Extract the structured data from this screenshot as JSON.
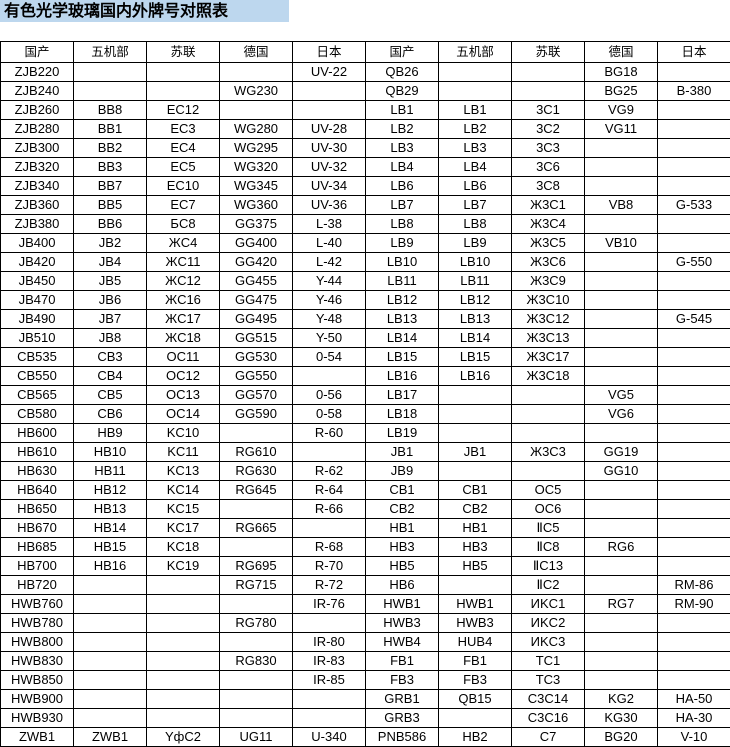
{
  "title": "有色光学玻璃国内外牌号对照表",
  "headers": [
    "国产",
    "五机部",
    "苏联",
    "德国",
    "日本",
    "国产",
    "五机部",
    "苏联",
    "德国",
    "日本"
  ],
  "rows": [
    [
      "ZJB220",
      "",
      "",
      "",
      "UV-22",
      "QB26",
      "",
      "",
      "BG18",
      ""
    ],
    [
      "ZJB240",
      "",
      "",
      "WG230",
      "",
      "QB29",
      "",
      "",
      "BG25",
      "B-380"
    ],
    [
      "ZJB260",
      "BB8",
      "EC12",
      "",
      "",
      "LB1",
      "LB1",
      "3C1",
      "VG9",
      ""
    ],
    [
      "ZJB280",
      "BB1",
      "EC3",
      "WG280",
      "UV-28",
      "LB2",
      "LB2",
      "3C2",
      "VG11",
      ""
    ],
    [
      "ZJB300",
      "BB2",
      "EC4",
      "WG295",
      "UV-30",
      "LB3",
      "LB3",
      "3C3",
      "",
      ""
    ],
    [
      "ZJB320",
      "BB3",
      "EC5",
      "WG320",
      "UV-32",
      "LB4",
      "LB4",
      "3C6",
      "",
      ""
    ],
    [
      "ZJB340",
      "BB7",
      "EC10",
      "WG345",
      "UV-34",
      "LB6",
      "LB6",
      "3C8",
      "",
      ""
    ],
    [
      "ZJB360",
      "BB5",
      "EC7",
      "WG360",
      "UV-36",
      "LB7",
      "LB7",
      "Ж3C1",
      "VB8",
      "G-533"
    ],
    [
      "ZJB380",
      "BB6",
      "БC8",
      "GG375",
      "L-38",
      "LB8",
      "LB8",
      "Ж3C4",
      "",
      ""
    ],
    [
      "JB400",
      "JB2",
      "ЖC4",
      "GG400",
      "L-40",
      "LB9",
      "LB9",
      "Ж3C5",
      "VB10",
      ""
    ],
    [
      "JB420",
      "JB4",
      "ЖC11",
      "GG420",
      "L-42",
      "LB10",
      "LB10",
      "Ж3C6",
      "",
      "G-550"
    ],
    [
      "JB450",
      "JB5",
      "ЖC12",
      "GG455",
      "Y-44",
      "LB11",
      "LB11",
      "Ж3C9",
      "",
      ""
    ],
    [
      "JB470",
      "JB6",
      "ЖC16",
      "GG475",
      "Y-46",
      "LB12",
      "LB12",
      "Ж3C10",
      "",
      ""
    ],
    [
      "JB490",
      "JB7",
      "ЖC17",
      "GG495",
      "Y-48",
      "LB13",
      "LB13",
      "Ж3C12",
      "",
      "G-545"
    ],
    [
      "JB510",
      "JB8",
      "ЖC18",
      "GG515",
      "Y-50",
      "LB14",
      "LB14",
      "Ж3C13",
      "",
      ""
    ],
    [
      "CB535",
      "CB3",
      "OC11",
      "GG530",
      "0-54",
      "LB15",
      "LB15",
      "Ж3C17",
      "",
      ""
    ],
    [
      "CB550",
      "CB4",
      "OC12",
      "GG550",
      "",
      "LB16",
      "LB16",
      "Ж3C18",
      "",
      ""
    ],
    [
      "CB565",
      "CB5",
      "OC13",
      "GG570",
      "0-56",
      "LB17",
      "",
      "",
      "VG5",
      ""
    ],
    [
      "CB580",
      "CB6",
      "OC14",
      "GG590",
      "0-58",
      "LB18",
      "",
      "",
      "VG6",
      ""
    ],
    [
      "HB600",
      "HB9",
      "KC10",
      "",
      "R-60",
      "LB19",
      "",
      "",
      "",
      ""
    ],
    [
      "HB610",
      "HB10",
      "KC11",
      "RG610",
      "",
      "JB1",
      "JB1",
      "Ж3C3",
      "GG19",
      ""
    ],
    [
      "HB630",
      "HB11",
      "KC13",
      "RG630",
      "R-62",
      "JB9",
      "",
      "",
      "GG10",
      ""
    ],
    [
      "HB640",
      "HB12",
      "KC14",
      "RG645",
      "R-64",
      "CB1",
      "CB1",
      "OC5",
      "",
      ""
    ],
    [
      "HB650",
      "HB13",
      "KC15",
      "",
      "R-66",
      "CB2",
      "CB2",
      "OC6",
      "",
      ""
    ],
    [
      "HB670",
      "HB14",
      "KC17",
      "RG665",
      "",
      "HB1",
      "HB1",
      "ⅡC5",
      "",
      ""
    ],
    [
      "HB685",
      "HB15",
      "KC18",
      "",
      "R-68",
      "HB3",
      "HB3",
      "ⅡC8",
      "RG6",
      ""
    ],
    [
      "HB700",
      "HB16",
      "KC19",
      "RG695",
      "R-70",
      "HB5",
      "HB5",
      "ⅡC13",
      "",
      ""
    ],
    [
      "HB720",
      "",
      "",
      "RG715",
      "R-72",
      "HB6",
      "",
      "ⅡC2",
      "",
      "RM-86"
    ],
    [
      "HWB760",
      "",
      "",
      "",
      "IR-76",
      "HWB1",
      "HWB1",
      "ИKC1",
      "RG7",
      "RM-90"
    ],
    [
      "HWB780",
      "",
      "",
      "RG780",
      "",
      "HWB3",
      "HWB3",
      "ИKC2",
      "",
      ""
    ],
    [
      "HWB800",
      "",
      "",
      "",
      "IR-80",
      "HWB4",
      "HUB4",
      "ИKC3",
      "",
      ""
    ],
    [
      "HWB830",
      "",
      "",
      "RG830",
      "IR-83",
      "FB1",
      "FB1",
      "TC1",
      "",
      ""
    ],
    [
      "HWB850",
      "",
      "",
      "",
      "IR-85",
      "FB3",
      "FB3",
      "TC3",
      "",
      ""
    ],
    [
      "HWB900",
      "",
      "",
      "",
      "",
      "GRB1",
      "QB15",
      "C3C14",
      "KG2",
      "HA-50"
    ],
    [
      "HWB930",
      "",
      "",
      "",
      "",
      "GRB3",
      "",
      "C3C16",
      "KG30",
      "HA-30"
    ],
    [
      "ZWB1",
      "ZWB1",
      "YфC2",
      "UG11",
      "U-340",
      "PNB586",
      "HB2",
      "C7",
      "BG20",
      "V-10"
    ]
  ]
}
